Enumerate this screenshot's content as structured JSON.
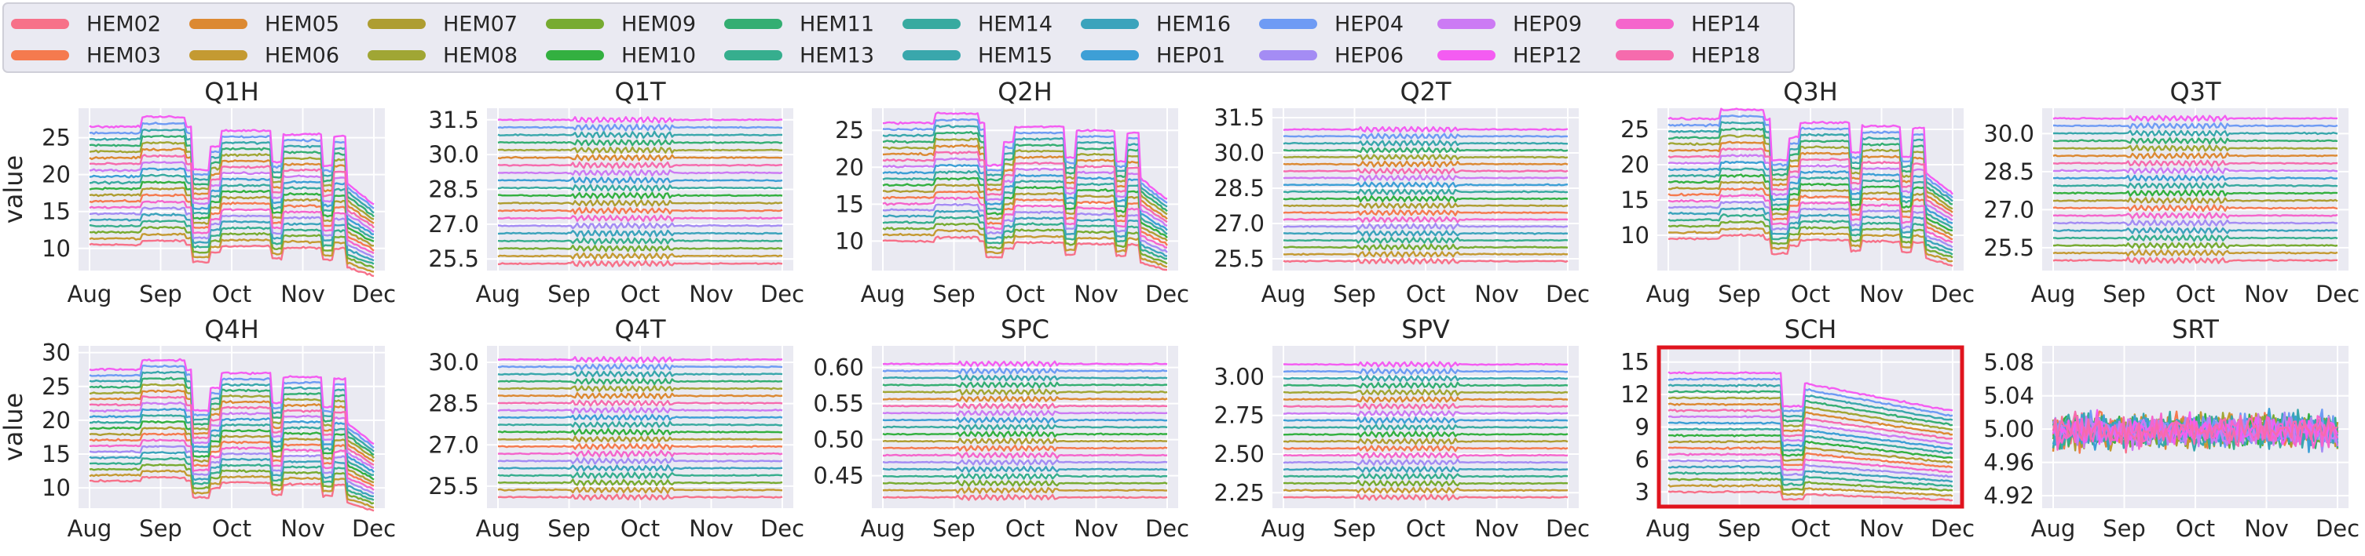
{
  "chart_data": {
    "type": "line",
    "ylabel": "value",
    "x_ticks": [
      "Aug",
      "Sep",
      "Oct",
      "Nov",
      "Dec"
    ],
    "legend": [
      {
        "name": "HEM02",
        "color": "#f77189"
      },
      {
        "name": "HEM03",
        "color": "#f57a4e"
      },
      {
        "name": "HEM05",
        "color": "#dc8932"
      },
      {
        "name": "HEM06",
        "color": "#c49a32"
      },
      {
        "name": "HEM07",
        "color": "#ae9d31"
      },
      {
        "name": "HEM08",
        "color": "#a0a634"
      },
      {
        "name": "HEM09",
        "color": "#77ab31"
      },
      {
        "name": "HEM10",
        "color": "#33b040"
      },
      {
        "name": "HEM11",
        "color": "#34ae72"
      },
      {
        "name": "HEM13",
        "color": "#36ae8e"
      },
      {
        "name": "HEM14",
        "color": "#38aaa0"
      },
      {
        "name": "HEM15",
        "color": "#39a7ac"
      },
      {
        "name": "HEM16",
        "color": "#3ba3bc"
      },
      {
        "name": "HEP01",
        "color": "#3d9fd6"
      },
      {
        "name": "HEP04",
        "color": "#6e9bf4"
      },
      {
        "name": "HEP06",
        "color": "#a48cf4"
      },
      {
        "name": "HEP09",
        "color": "#cc7af4"
      },
      {
        "name": "HEP12",
        "color": "#f45cf2"
      },
      {
        "name": "HEP14",
        "color": "#f565cc"
      },
      {
        "name": "HEP18",
        "color": "#f66bad"
      }
    ],
    "panels": [
      {
        "title": "Q1H",
        "y_ticks": [
          "10",
          "15",
          "20",
          "25"
        ],
        "ylim": [
          7,
          29
        ],
        "kind": "H",
        "lo": 10.5,
        "hi": 26.5,
        "highlight": false,
        "ylabel": true
      },
      {
        "title": "Q1T",
        "y_ticks": [
          "25.5",
          "27.0",
          "28.5",
          "30.0",
          "31.5"
        ],
        "ylim": [
          25.0,
          32.0
        ],
        "kind": "T",
        "lo": 25.3,
        "hi": 31.5,
        "highlight": false,
        "ylabel": false
      },
      {
        "title": "Q2H",
        "y_ticks": [
          "10",
          "15",
          "20",
          "25"
        ],
        "ylim": [
          6,
          28
        ],
        "kind": "H",
        "lo": 10.0,
        "hi": 26.0,
        "highlight": false,
        "ylabel": false
      },
      {
        "title": "Q2T",
        "y_ticks": [
          "25.5",
          "27.0",
          "28.5",
          "30.0",
          "31.5"
        ],
        "ylim": [
          25.0,
          31.9
        ],
        "kind": "T",
        "lo": 25.4,
        "hi": 31.0,
        "highlight": false,
        "ylabel": false
      },
      {
        "title": "Q3H",
        "y_ticks": [
          "10",
          "15",
          "20",
          "25"
        ],
        "ylim": [
          5,
          28
        ],
        "kind": "H",
        "lo": 9.5,
        "hi": 26.5,
        "highlight": false,
        "ylabel": false
      },
      {
        "title": "Q3T",
        "y_ticks": [
          "25.5",
          "27.0",
          "28.5",
          "30.0"
        ],
        "ylim": [
          24.6,
          31.0
        ],
        "kind": "T",
        "lo": 25.0,
        "hi": 30.6,
        "highlight": false,
        "ylabel": false
      },
      {
        "title": "Q4H",
        "y_ticks": [
          "10",
          "15",
          "20",
          "25",
          "30"
        ],
        "ylim": [
          7,
          31
        ],
        "kind": "H",
        "lo": 11.0,
        "hi": 27.5,
        "highlight": false,
        "ylabel": true
      },
      {
        "title": "Q4T",
        "y_ticks": [
          "25.5",
          "27.0",
          "28.5",
          "30.0"
        ],
        "ylim": [
          24.7,
          30.6
        ],
        "kind": "T",
        "lo": 25.1,
        "hi": 30.1,
        "highlight": false,
        "ylabel": false
      },
      {
        "title": "SPC",
        "y_ticks": [
          "0.45",
          "0.50",
          "0.55",
          "0.60"
        ],
        "ylim": [
          0.405,
          0.63
        ],
        "kind": "T",
        "lo": 0.42,
        "hi": 0.605,
        "highlight": false,
        "ylabel": false
      },
      {
        "title": "SPV",
        "y_ticks": [
          "2.25",
          "2.50",
          "2.75",
          "3.00"
        ],
        "ylim": [
          2.15,
          3.2
        ],
        "kind": "T",
        "lo": 2.22,
        "hi": 3.08,
        "highlight": false,
        "ylabel": false
      },
      {
        "title": "SCH",
        "y_ticks": [
          "3",
          "6",
          "9",
          "12",
          "15"
        ],
        "ylim": [
          1.5,
          16.5
        ],
        "kind": "S",
        "lo": 3.0,
        "hi": 14.0,
        "highlight": true,
        "ylabel": false
      },
      {
        "title": "SRT",
        "y_ticks": [
          "4.92",
          "4.96",
          "5.00",
          "5.04",
          "5.08"
        ],
        "ylim": [
          4.905,
          5.1
        ],
        "kind": "R",
        "lo": 4.955,
        "hi": 5.04,
        "highlight": false,
        "ylabel": false
      }
    ]
  }
}
